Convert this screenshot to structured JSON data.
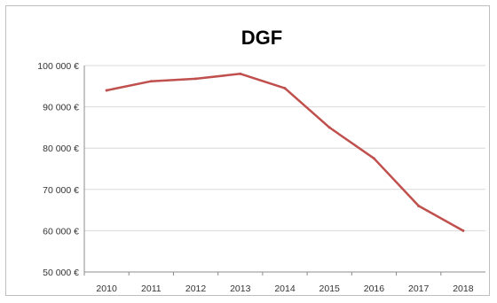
{
  "chart_data": {
    "type": "line",
    "title": "DGF",
    "xlabel": "",
    "ylabel": "",
    "x": [
      "2010",
      "2011",
      "2012",
      "2013",
      "2014",
      "2015",
      "2016",
      "2017",
      "2018"
    ],
    "series": [
      {
        "values": [
          94000,
          96200,
          96800,
          98000,
          94500,
          85000,
          77500,
          66000,
          60000
        ],
        "color": "#c0504d"
      }
    ],
    "ylim": [
      50000,
      100000
    ],
    "yticks": [
      50000,
      60000,
      70000,
      80000,
      90000,
      100000
    ],
    "ytick_labels": [
      "50 000 €",
      "60 000 €",
      "70 000 €",
      "80 000 €",
      "90 000 €",
      "100 000 €"
    ],
    "grid": true,
    "legend": "none"
  }
}
